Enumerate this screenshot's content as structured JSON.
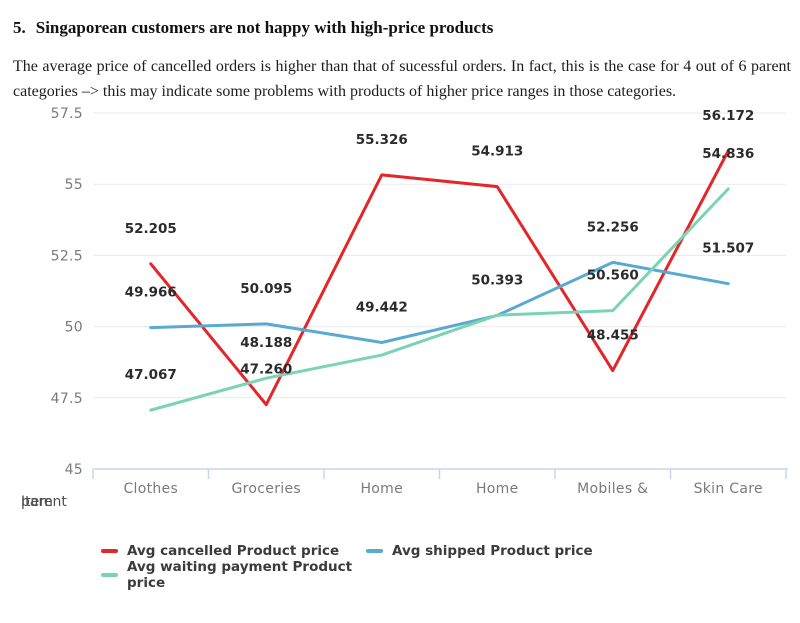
{
  "document": {
    "heading_number": "5.",
    "heading_text": "Singaporean customers are not happy with high-price products",
    "paragraph": "The average price of cancelled orders is higher than that of sucessful orders. In fact, this is the case for 4 out of 6 parent categories –> this may indicate some problems with products of higher price ranges in those categories."
  },
  "chart_data": {
    "type": "line",
    "categories": [
      "Clothes",
      "Groceries",
      "Home",
      "Home",
      "Mobiles &",
      "Skin Care"
    ],
    "x_axis_overlap_text": [
      "Item",
      "parent"
    ],
    "ylim": [
      45,
      57.5
    ],
    "y_ticks": [
      57.5,
      55,
      52.5,
      50,
      47.5,
      45
    ],
    "y_tick_labels": [
      "57.5",
      "55",
      "52.5",
      "50",
      "47.5",
      "45"
    ],
    "grid": true,
    "legend_position": "bottom",
    "series": [
      {
        "name": "Avg cancelled Product price",
        "color": "#e42529",
        "values": [
          52.205,
          47.26,
          55.326,
          54.913,
          48.455,
          56.172
        ],
        "point_labels": [
          "52.205",
          "47.260",
          "55.326",
          "54.913",
          "48.455",
          "56.172"
        ]
      },
      {
        "name": "Avg shipped Product price",
        "color": "#5aaad0",
        "values": [
          49.966,
          50.095,
          49.442,
          50.393,
          52.256,
          51.507
        ],
        "point_labels": [
          "49.966",
          "50.095",
          "49.442",
          "50.393",
          "52.256",
          "51.507"
        ]
      },
      {
        "name": "Avg waiting payment Product price",
        "color": "#7bd3b5",
        "values": [
          47.067,
          48.188,
          49.0,
          50.4,
          50.56,
          54.836
        ],
        "point_labels": [
          "47.067",
          "48.188",
          null,
          null,
          "50.560",
          "54.836"
        ]
      }
    ],
    "style": {
      "grid_color": "#eaeaea",
      "axis_color": "#c9d5e9",
      "tick_label_color": "#7a7a7a",
      "data_label_color": "#2b2b2b",
      "axis_overlap_text_color": "#4d4d4d",
      "legend_text_color": "#3b3b3b"
    }
  }
}
